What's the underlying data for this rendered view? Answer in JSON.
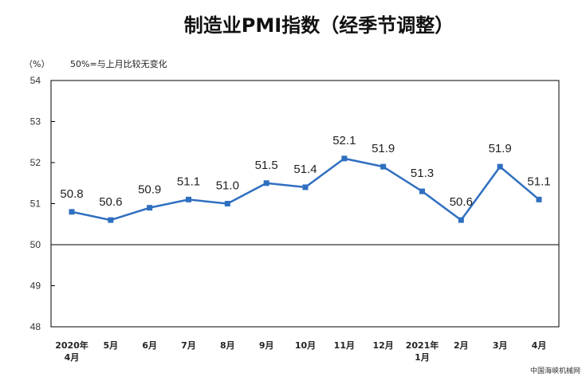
{
  "chart_data": {
    "type": "line",
    "title": "制造业PMI指数（经季节调整）",
    "unit_label": "（%）",
    "note": "50%=与上月比较无变化",
    "categories": [
      [
        "2020年",
        "4月"
      ],
      [
        "5月"
      ],
      [
        "6月"
      ],
      [
        "7月"
      ],
      [
        "8月"
      ],
      [
        "9月"
      ],
      [
        "10月"
      ],
      [
        "11月"
      ],
      [
        "12月"
      ],
      [
        "2021年",
        "1月"
      ],
      [
        "2月"
      ],
      [
        "3月"
      ],
      [
        "4月"
      ]
    ],
    "values": [
      50.8,
      50.6,
      50.9,
      51.1,
      51.0,
      51.5,
      51.4,
      52.1,
      51.9,
      51.3,
      50.6,
      51.9,
      51.1
    ],
    "value_labels": [
      "50.8",
      "50.6",
      "50.9",
      "51.1",
      "51.0",
      "51.5",
      "51.4",
      "52.1",
      "51.9",
      "51.3",
      "50.6",
      "51.9",
      "51.1"
    ],
    "ylim": [
      48,
      54
    ],
    "yticks": [
      48,
      49,
      50,
      51,
      52,
      53,
      54
    ],
    "reference_line": 50,
    "grid": false,
    "line_color": "#2f6fc0"
  },
  "watermark": "中国海峡机械网"
}
